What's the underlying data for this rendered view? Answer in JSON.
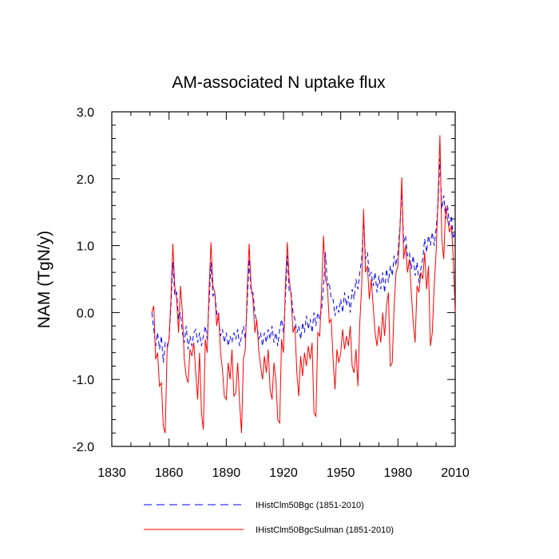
{
  "chart_data": {
    "type": "line",
    "title": "AM-associated N uptake flux",
    "ylabel": "NAM  (TgN/y)",
    "xlabel": "",
    "xlim": [
      1830,
      2010
    ],
    "ylim": [
      -2.0,
      3.0
    ],
    "xticks": [
      1830,
      1860,
      1890,
      1920,
      1950,
      1980,
      2010
    ],
    "yticks": [
      "-2.0",
      "-1.0",
      "0.0",
      "1.0",
      "2.0",
      "3.0"
    ],
    "ytick_values": [
      -2.0,
      -1.0,
      0.0,
      1.0,
      2.0,
      3.0
    ],
    "grid": false,
    "legend_position": "bottom",
    "x": [
      1851,
      1852,
      1853,
      1854,
      1855,
      1856,
      1857,
      1858,
      1859,
      1860,
      1861,
      1862,
      1863,
      1864,
      1865,
      1866,
      1867,
      1868,
      1869,
      1870,
      1871,
      1872,
      1873,
      1874,
      1875,
      1876,
      1877,
      1878,
      1879,
      1880,
      1881,
      1882,
      1883,
      1884,
      1885,
      1886,
      1887,
      1888,
      1889,
      1890,
      1891,
      1892,
      1893,
      1894,
      1895,
      1896,
      1897,
      1898,
      1899,
      1900,
      1901,
      1902,
      1903,
      1904,
      1905,
      1906,
      1907,
      1908,
      1909,
      1910,
      1911,
      1912,
      1913,
      1914,
      1915,
      1916,
      1917,
      1918,
      1919,
      1920,
      1921,
      1922,
      1923,
      1924,
      1925,
      1926,
      1927,
      1928,
      1929,
      1930,
      1931,
      1932,
      1933,
      1934,
      1935,
      1936,
      1937,
      1938,
      1939,
      1940,
      1941,
      1942,
      1943,
      1944,
      1945,
      1946,
      1947,
      1948,
      1949,
      1950,
      1951,
      1952,
      1953,
      1954,
      1955,
      1956,
      1957,
      1958,
      1959,
      1960,
      1961,
      1962,
      1963,
      1964,
      1965,
      1966,
      1967,
      1968,
      1969,
      1970,
      1971,
      1972,
      1973,
      1974,
      1975,
      1976,
      1977,
      1978,
      1979,
      1980,
      1981,
      1982,
      1983,
      1984,
      1985,
      1986,
      1987,
      1988,
      1989,
      1990,
      1991,
      1992,
      1993,
      1994,
      1995,
      1996,
      1997,
      1998,
      1999,
      2000,
      2001,
      2002,
      2003,
      2004,
      2005,
      2006,
      2007,
      2008,
      2009,
      2010
    ],
    "series": [
      {
        "name": "IHistClm50Bgc (1851-2010)",
        "color": "#0000ff",
        "dash": true,
        "values": [
          0.0,
          -0.25,
          -0.5,
          -0.3,
          -0.55,
          -0.35,
          -0.75,
          -0.45,
          -0.5,
          -0.4,
          0.1,
          0.75,
          0.25,
          0.3,
          -0.1,
          0.0,
          -0.3,
          -0.45,
          -0.2,
          -0.55,
          -0.35,
          -0.5,
          -0.3,
          -0.25,
          -0.45,
          -0.3,
          -0.5,
          -0.35,
          -0.2,
          -0.4,
          0.15,
          0.75,
          0.25,
          0.3,
          0.0,
          -0.1,
          -0.35,
          -0.25,
          -0.45,
          -0.3,
          -0.5,
          -0.35,
          -0.45,
          -0.3,
          -0.4,
          -0.25,
          -0.5,
          -0.35,
          -0.2,
          -0.4,
          0.15,
          0.8,
          0.3,
          0.3,
          0.0,
          -0.15,
          -0.4,
          -0.3,
          -0.5,
          -0.3,
          -0.45,
          -0.25,
          -0.4,
          -0.2,
          -0.45,
          -0.3,
          -0.5,
          -0.25,
          -0.1,
          -0.3,
          0.2,
          0.85,
          0.3,
          0.3,
          0.0,
          -0.1,
          -0.3,
          -0.2,
          -0.4,
          -0.15,
          -0.3,
          -0.05,
          -0.25,
          -0.1,
          -0.3,
          0.0,
          -0.2,
          0.0,
          -0.1,
          0.05,
          0.4,
          0.9,
          0.4,
          0.45,
          0.2,
          0.2,
          -0.05,
          0.1,
          0.0,
          0.2,
          0.0,
          0.3,
          0.1,
          0.25,
          0.0,
          0.35,
          0.2,
          0.5,
          0.35,
          0.6,
          0.8,
          1.4,
          0.8,
          0.9,
          0.55,
          0.6,
          0.4,
          0.6,
          0.3,
          0.55,
          0.35,
          0.6,
          0.3,
          0.65,
          0.45,
          0.7,
          0.55,
          0.85,
          0.7,
          0.9,
          1.25,
          1.85,
          1.05,
          1.15,
          0.85,
          0.9,
          0.65,
          0.85,
          0.55,
          0.75,
          0.45,
          0.65,
          0.8,
          1.1,
          0.9,
          1.15,
          1.0,
          1.2,
          1.0,
          1.25,
          1.6,
          2.3,
          1.55,
          1.75,
          1.4,
          1.6,
          1.3,
          1.45,
          1.1,
          1.2
        ]
      },
      {
        "name": "IHistClm50BgcSulman (1851-2010)",
        "color": "#ff0000",
        "dash": false,
        "values": [
          0.0,
          0.1,
          -0.7,
          -0.6,
          -1.1,
          -1.05,
          -1.7,
          -1.8,
          -0.55,
          -0.4,
          0.2,
          1.03,
          0.4,
          0.2,
          -0.3,
          0.4,
          0.0,
          -0.7,
          -0.95,
          -1.05,
          -0.55,
          -0.65,
          -0.45,
          -0.9,
          -1.3,
          -0.6,
          -1.5,
          -1.75,
          -0.4,
          -0.6,
          0.35,
          1.05,
          0.4,
          0.3,
          -0.2,
          0.0,
          -0.6,
          -0.85,
          -1.25,
          -1.3,
          -0.75,
          -1.0,
          -0.55,
          -1.25,
          -1.2,
          -0.75,
          -1.35,
          -1.8,
          -0.7,
          -0.55,
          0.35,
          1.03,
          0.4,
          0.2,
          -0.3,
          -0.1,
          -0.55,
          -0.8,
          -1.0,
          -0.65,
          -0.9,
          -0.55,
          -1.15,
          -1.3,
          -0.75,
          -1.0,
          -1.6,
          -1.65,
          -0.4,
          -0.6,
          0.4,
          1.05,
          0.5,
          0.25,
          -0.3,
          -0.2,
          -0.9,
          -1.25,
          -0.65,
          -0.95,
          -0.6,
          -0.8,
          -0.5,
          -0.7,
          -0.45,
          -1.5,
          -1.55,
          -0.3,
          -0.35,
          0.35,
          1.15,
          0.5,
          0.4,
          -0.15,
          -0.1,
          -0.7,
          -1.15,
          -0.55,
          -0.75,
          -0.6,
          -0.25,
          -0.55,
          -0.35,
          -0.5,
          -0.2,
          -0.8,
          -0.9,
          -0.55,
          -1.1,
          -0.15,
          0.4,
          1.55,
          0.6,
          0.7,
          0.2,
          0.5,
          0.1,
          -0.3,
          -0.5,
          -0.2,
          -0.45,
          0.0,
          -0.35,
          0.1,
          0.3,
          -0.8,
          -0.75,
          0.1,
          0.6,
          0.7,
          1.2,
          2.02,
          0.8,
          1.0,
          0.6,
          0.8,
          0.3,
          -0.15,
          -0.45,
          0.4,
          0.3,
          0.6,
          0.5,
          0.9,
          0.35,
          0.7,
          -0.5,
          -0.3,
          0.4,
          0.9,
          1.7,
          2.65,
          1.1,
          0.8,
          1.6,
          1.4,
          1.2,
          1.3,
          0.8,
          0.0
        ]
      }
    ]
  }
}
